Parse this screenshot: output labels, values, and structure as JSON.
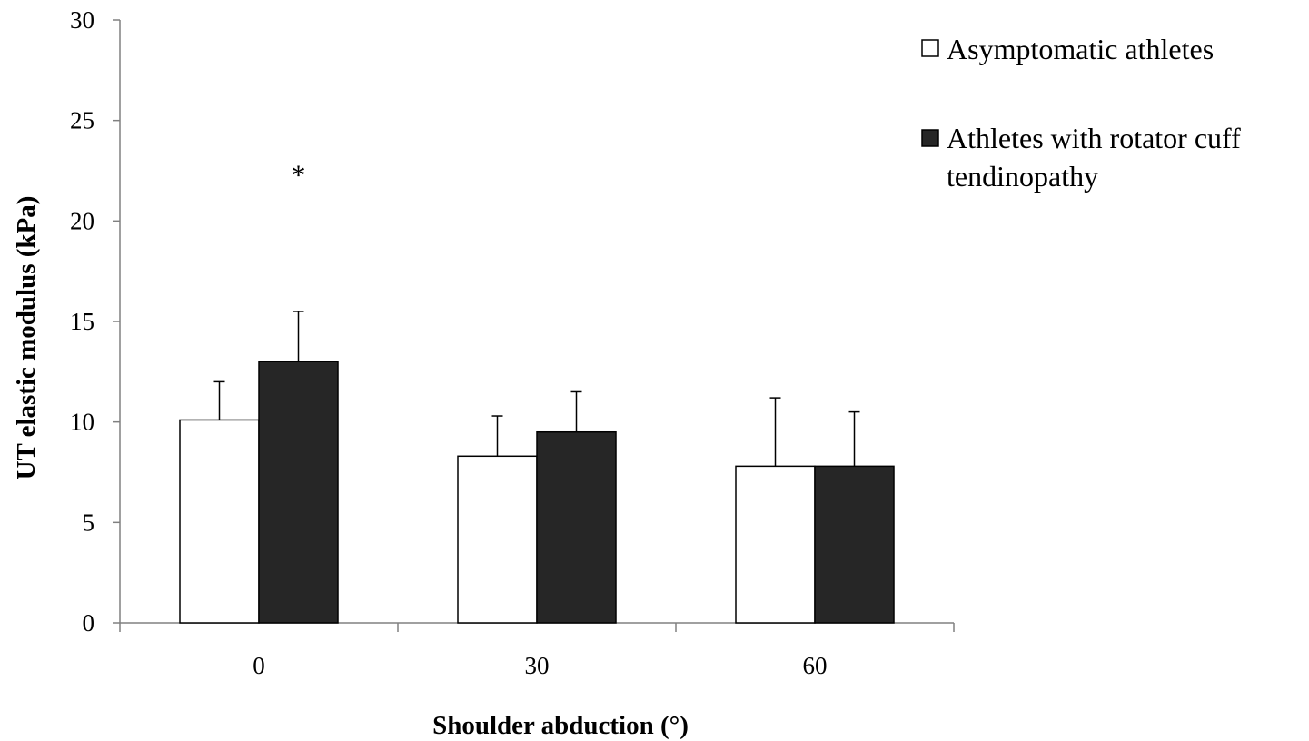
{
  "chart_data": {
    "type": "bar",
    "title": "",
    "xlabel": "Shoulder abduction (°)",
    "ylabel": "UT elastic modulus (kPa)",
    "categories": [
      "0",
      "30",
      "60"
    ],
    "ylim": [
      0,
      30
    ],
    "yticks": [
      0,
      5,
      10,
      15,
      20,
      25,
      30
    ],
    "yticks_labels": [
      "0",
      "5",
      "10",
      "15",
      "20",
      "25",
      "30"
    ],
    "grid": false,
    "legend_position": "top-right",
    "series": [
      {
        "name": "Asymptomatic athletes",
        "values": [
          10.1,
          8.3,
          7.8
        ],
        "error": [
          1.9,
          2.0,
          3.4
        ],
        "fill": "#ffffff",
        "stroke": "#000000"
      },
      {
        "name": "Athletes with rotator cuff tendinopathy",
        "legend_lines": [
          "Athletes with rotator cuff",
          "tendinopathy"
        ],
        "values": [
          13.0,
          9.5,
          7.8
        ],
        "error": [
          2.5,
          2.0,
          2.7
        ],
        "fill": "#262626",
        "stroke": "#000000"
      }
    ],
    "annotations": [
      {
        "text": "*",
        "category_index": 0,
        "series_index": 1
      }
    ]
  }
}
